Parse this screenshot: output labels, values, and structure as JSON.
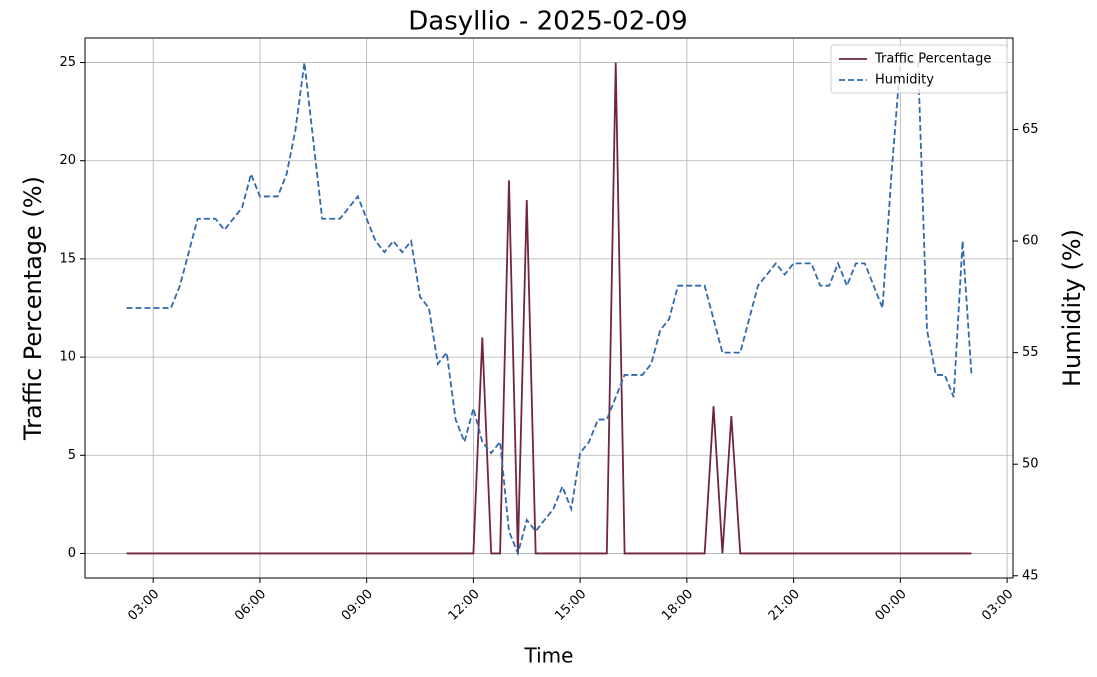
{
  "chart_data": {
    "type": "line",
    "title": "Dasyllio - 2025-02-09",
    "xlabel": "Time",
    "ylabel": "Traffic Percentage (%)",
    "y2label": "Humidity (%)",
    "x": [
      "02:15",
      "03:30",
      "03:45",
      "04:15",
      "04:45",
      "05:00",
      "05:30",
      "05:45",
      "06:00",
      "06:30",
      "06:45",
      "07:00",
      "07:15",
      "07:45",
      "08:15",
      "08:45",
      "09:00",
      "09:15",
      "09:30",
      "09:45",
      "10:00",
      "10:15",
      "10:30",
      "10:45",
      "11:00",
      "11:15",
      "11:30",
      "11:45",
      "12:00",
      "12:15",
      "12:30",
      "12:45",
      "13:00",
      "13:15",
      "13:30",
      "13:45",
      "14:00",
      "14:15",
      "14:30",
      "14:45",
      "15:00",
      "15:15",
      "15:30",
      "15:45",
      "16:00",
      "16:15",
      "16:45",
      "17:00",
      "17:15",
      "17:30",
      "17:45",
      "18:30",
      "18:45",
      "19:00",
      "19:15",
      "19:30",
      "19:45",
      "20:00",
      "20:15",
      "20:30",
      "20:45",
      "21:00",
      "21:30",
      "21:45",
      "22:00",
      "22:15",
      "22:30",
      "22:45",
      "23:00",
      "23:15",
      "23:30",
      "23:45",
      "00:00",
      "00:30",
      "00:45",
      "01:00",
      "01:15",
      "01:30",
      "01:45",
      "02:00"
    ],
    "series": [
      {
        "name": "Traffic Percentage",
        "color": "#722543",
        "style": "solid",
        "values": [
          0,
          0,
          0,
          0,
          0,
          0,
          0,
          0,
          0,
          0,
          0,
          0,
          0,
          0,
          0,
          0,
          0,
          0,
          0,
          0,
          0,
          0,
          0,
          0,
          0,
          0,
          0,
          0,
          0,
          11,
          0,
          0,
          19,
          0,
          18,
          0,
          0,
          0,
          0,
          0,
          0,
          0,
          0,
          0,
          25,
          0,
          0,
          0,
          0,
          0,
          0,
          0,
          7.5,
          0,
          7,
          0,
          0,
          0,
          0,
          0,
          0,
          0,
          0,
          0,
          0,
          0,
          0,
          0,
          0,
          0,
          0,
          0,
          0,
          0,
          0,
          0,
          0,
          0,
          0,
          0
        ]
      },
      {
        "name": "Humidity",
        "color": "#2f6aad",
        "style": "dashed",
        "axis": "y2",
        "values": [
          57,
          57,
          58,
          61,
          61,
          60.5,
          61.5,
          63,
          62,
          62,
          63,
          65,
          68,
          61,
          61,
          62,
          61,
          60,
          59.5,
          60,
          59.5,
          60,
          57.5,
          57,
          54.5,
          55,
          52,
          51,
          52.5,
          51,
          50.5,
          51,
          47,
          46,
          47.5,
          47,
          47.5,
          48,
          49,
          48,
          50.5,
          51,
          52,
          52,
          53,
          54,
          54,
          54.5,
          56,
          56.5,
          58,
          58,
          56.5,
          55,
          55,
          55,
          56.5,
          58,
          58.5,
          59,
          58.5,
          59,
          59,
          58,
          58,
          59,
          58,
          59,
          59,
          58,
          57,
          63,
          68,
          68,
          56,
          54,
          54,
          53,
          60,
          54
        ]
      }
    ],
    "xlim": [
      "01:05",
      "03:10"
    ],
    "xticks": [
      "03:00",
      "06:00",
      "09:00",
      "12:00",
      "15:00",
      "18:00",
      "21:00",
      "00:00",
      "03:00"
    ],
    "ylim": [
      -1.25,
      26.25
    ],
    "yticks": [
      0,
      5,
      10,
      15,
      20,
      25
    ],
    "y2lim": [
      44.9,
      69.1
    ],
    "y2ticks": [
      45,
      50,
      55,
      60,
      65
    ],
    "grid": true,
    "legend": "upper right"
  }
}
